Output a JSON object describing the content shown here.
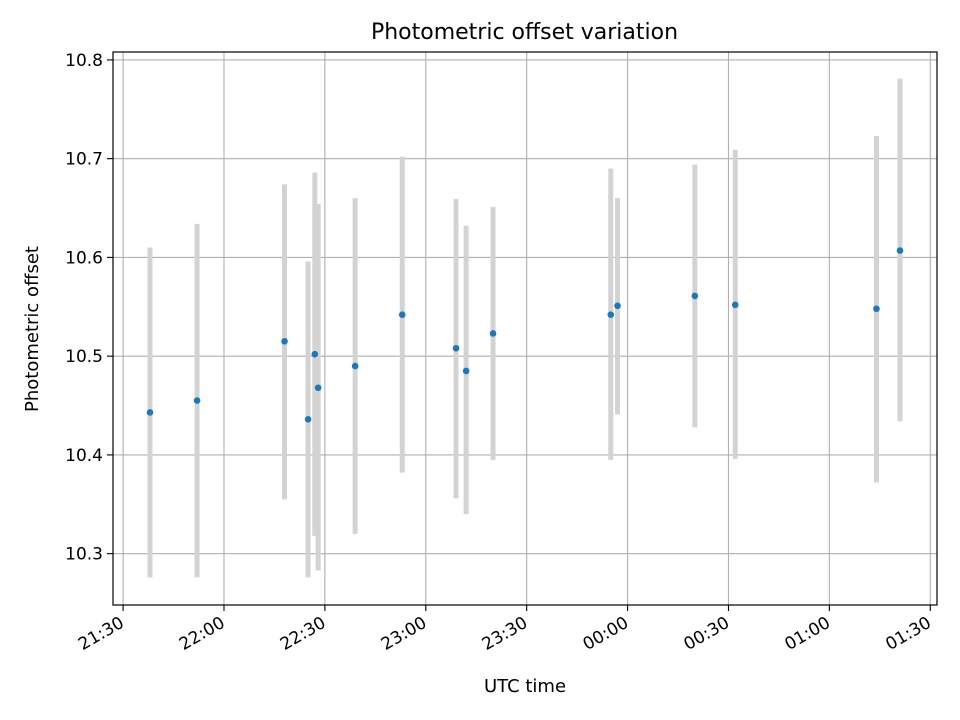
{
  "chart_data": {
    "type": "scatter",
    "title": "Photometric offset variation",
    "xlabel": "UTC time",
    "ylabel": "Photometric offset",
    "x_is_time": true,
    "xlim": [
      "21:27",
      "01:32"
    ],
    "ylim": [
      10.248,
      10.808
    ],
    "grid": true,
    "legend": null,
    "x_ticks": [
      "21:30",
      "22:00",
      "22:30",
      "23:00",
      "23:30",
      "00:00",
      "00:30",
      "01:00",
      "01:30"
    ],
    "y_ticks": [
      "10.3",
      "10.4",
      "10.5",
      "10.6",
      "10.7",
      "10.8"
    ],
    "colors": {
      "points": "#1f77b4",
      "errorbars": "#d3d3d3",
      "grid": "#b0b0b0"
    },
    "points": [
      {
        "x": "21:38",
        "y": 10.443,
        "ylow": 10.276,
        "yhigh": 10.61
      },
      {
        "x": "21:52",
        "y": 10.455,
        "ylow": 10.276,
        "yhigh": 10.634
      },
      {
        "x": "22:18",
        "y": 10.515,
        "ylow": 10.355,
        "yhigh": 10.674
      },
      {
        "x": "22:25",
        "y": 10.436,
        "ylow": 10.276,
        "yhigh": 10.596
      },
      {
        "x": "22:27",
        "y": 10.502,
        "ylow": 10.318,
        "yhigh": 10.686
      },
      {
        "x": "22:28",
        "y": 10.468,
        "ylow": 10.283,
        "yhigh": 10.654
      },
      {
        "x": "22:39",
        "y": 10.49,
        "ylow": 10.32,
        "yhigh": 10.66
      },
      {
        "x": "22:53",
        "y": 10.542,
        "ylow": 10.382,
        "yhigh": 10.702
      },
      {
        "x": "23:09",
        "y": 10.508,
        "ylow": 10.356,
        "yhigh": 10.659
      },
      {
        "x": "23:12",
        "y": 10.485,
        "ylow": 10.34,
        "yhigh": 10.632
      },
      {
        "x": "23:20",
        "y": 10.523,
        "ylow": 10.395,
        "yhigh": 10.651
      },
      {
        "x": "23:55",
        "y": 10.542,
        "ylow": 10.395,
        "yhigh": 10.69
      },
      {
        "x": "23:57",
        "y": 10.551,
        "ylow": 10.441,
        "yhigh": 10.66
      },
      {
        "x": "00:20",
        "y": 10.561,
        "ylow": 10.428,
        "yhigh": 10.694
      },
      {
        "x": "00:32",
        "y": 10.552,
        "ylow": 10.396,
        "yhigh": 10.709
      },
      {
        "x": "01:14",
        "y": 10.548,
        "ylow": 10.372,
        "yhigh": 10.723
      },
      {
        "x": "01:21",
        "y": 10.607,
        "ylow": 10.434,
        "yhigh": 10.781
      }
    ]
  }
}
